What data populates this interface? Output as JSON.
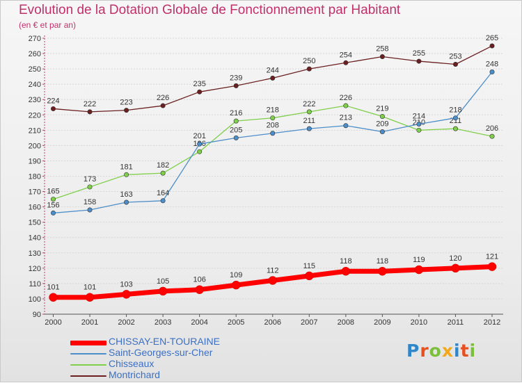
{
  "title": "Evolution de la Dotation Globale de Fonctionnement par Habitant",
  "subtitle": "(en € et par an)",
  "logo": {
    "text": "Proxiti",
    "letter_colors": [
      "#2f86c8",
      "#e6501e",
      "#7bbf3a",
      "#f2a81d",
      "#2f86c8",
      "#e6501e",
      "#7bbf3a"
    ]
  },
  "chart_data": {
    "type": "line",
    "title": "Evolution de la Dotation Globale de Fonctionnement par Habitant",
    "subtitle": "(en € et par an)",
    "xlabel": "",
    "ylabel": "",
    "ylim": [
      90,
      270
    ],
    "ytick_step": 10,
    "grid": true,
    "legend_position": "bottom-left",
    "categories": [
      "2000",
      "2001",
      "2002",
      "2003",
      "2004",
      "2005",
      "2006",
      "2007",
      "2008",
      "2009",
      "2010",
      "2011",
      "2012"
    ],
    "series": [
      {
        "name": "CHISSAY-EN-TOURAINE",
        "color": "#ff0000",
        "highlight": true,
        "values": [
          101,
          101,
          103,
          105,
          106,
          109,
          112,
          115,
          118,
          118,
          119,
          120,
          121
        ]
      },
      {
        "name": "Saint-Georges-sur-Cher",
        "color": "#4c8ec9",
        "values": [
          156,
          158,
          163,
          164,
          201,
          205,
          208,
          211,
          213,
          209,
          214,
          218,
          248
        ]
      },
      {
        "name": "Chisseaux",
        "color": "#7fcf4a",
        "values": [
          165,
          173,
          181,
          182,
          196,
          216,
          218,
          222,
          226,
          219,
          210,
          211,
          206
        ]
      },
      {
        "name": "Montrichard",
        "color": "#6b1f20",
        "values": [
          224,
          222,
          223,
          226,
          235,
          239,
          244,
          250,
          254,
          258,
          255,
          253,
          265
        ]
      }
    ]
  }
}
